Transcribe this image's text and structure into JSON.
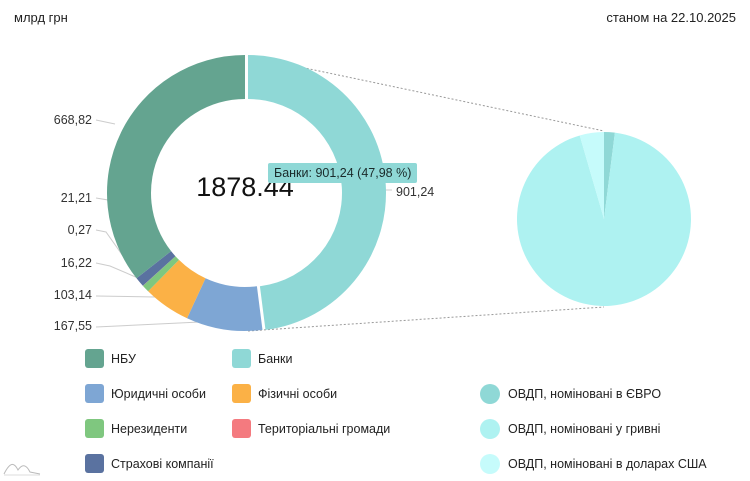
{
  "header": {
    "unit": "млрд грн",
    "date": "станом на 22.10.2025"
  },
  "chart_data": [
    {
      "type": "pie",
      "variant": "donut",
      "center_label": "1878.44",
      "tooltip": "Банки: 901,24 (47,98 %)",
      "slices": [
        {
          "name": "Банки",
          "value": 901.24,
          "label": "901,24",
          "color": "#8fd8d6"
        },
        {
          "name": "Юридичні особи",
          "value": 167.55,
          "label": "167,55",
          "color": "#7ea6d4"
        },
        {
          "name": "Фізичні особи",
          "value": 103.14,
          "label": "103,14",
          "color": "#fbb146"
        },
        {
          "name": "Нерезиденти",
          "value": 16.22,
          "label": "16,22",
          "color": "#7fc77f"
        },
        {
          "name": "Територіальні громади",
          "value": 0.27,
          "label": "0,27",
          "color": "#f47a7f"
        },
        {
          "name": "Страхові компанії",
          "value": 21.21,
          "label": "21,21",
          "color": "#5a72a0"
        },
        {
          "name": "НБУ",
          "value": 668.82,
          "label": "668,82",
          "color": "#64a490"
        }
      ]
    },
    {
      "type": "pie",
      "detail_of": "Банки",
      "slices": [
        {
          "name": "ОВДП, номіновані в ЄВРО",
          "share_pct": 2,
          "color": "#8fd8d6"
        },
        {
          "name": "ОВДП, номіновані у гривні",
          "share_pct": 93.5,
          "color": "#aef2f1"
        },
        {
          "name": "ОВДП, номіновані в доларах США",
          "share_pct": 4.5,
          "color": "#c6fbfb"
        }
      ]
    }
  ]
}
